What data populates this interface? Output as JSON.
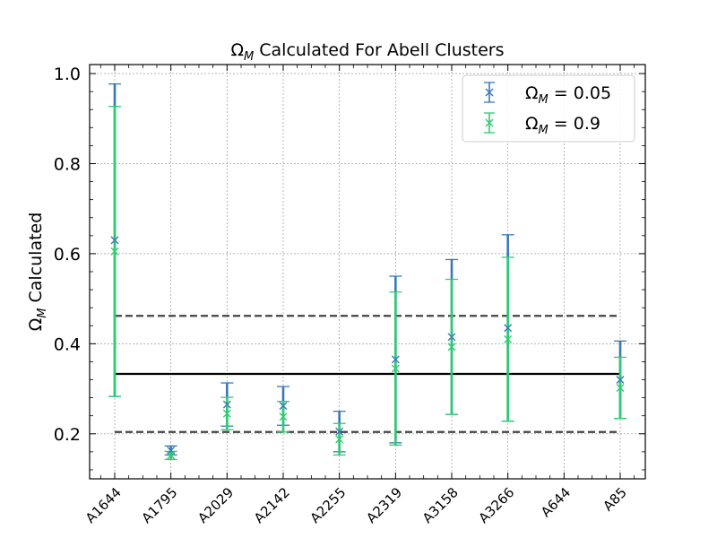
{
  "chart_data": {
    "type": "scatter",
    "title": "ΩM Calculated For Abell Clusters",
    "title_parts": {
      "symbol": "Ω",
      "subscript": "M",
      "rest": " Calculated For Abell Clusters"
    },
    "ylabel": "ΩM Calculated",
    "ylabel_parts": {
      "symbol": "Ω",
      "subscript": "M",
      "rest": " Calculated"
    },
    "categories": [
      "A1644",
      "A1795",
      "A2029",
      "A2142",
      "A2255",
      "A2319",
      "A3158",
      "A3266",
      "A644",
      "A85"
    ],
    "ylim": [
      0.1,
      1.02
    ],
    "yticks": [
      "0.2",
      "0.4",
      "0.6",
      "0.8",
      "1.0"
    ],
    "grid": true,
    "legend_position": "top-right",
    "series": [
      {
        "name": "ΩM = 0.05",
        "name_parts": {
          "symbol": "Ω",
          "subscript": "M",
          "rest": " = 0.05"
        },
        "color": "#3a78b8",
        "offset": 0.0,
        "values": [
          0.63,
          0.163,
          0.265,
          0.262,
          0.205,
          0.365,
          0.415,
          0.435,
          null,
          0.32
        ],
        "errors": [
          0.347,
          0.01,
          0.048,
          0.043,
          0.045,
          0.185,
          0.172,
          0.207,
          null,
          0.086
        ]
      },
      {
        "name": "ΩM = 0.9",
        "name_parts": {
          "symbol": "Ω",
          "subscript": "M",
          "rest": " = 0.9"
        },
        "color": "#2ecc71",
        "offset": -0.02,
        "values": [
          0.605,
          0.152,
          0.245,
          0.238,
          0.188,
          0.345,
          0.393,
          0.41,
          null,
          0.302
        ],
        "errors": [
          0.322,
          0.009,
          0.036,
          0.034,
          0.035,
          0.17,
          0.15,
          0.182,
          null,
          0.068
        ]
      }
    ],
    "reference_lines": [
      {
        "y": 0.333,
        "style": "solid",
        "color": "#000000"
      },
      {
        "y": 0.462,
        "style": "dashed",
        "color": "#444444"
      },
      {
        "y": 0.204,
        "style": "dashed",
        "color": "#444444"
      }
    ]
  }
}
